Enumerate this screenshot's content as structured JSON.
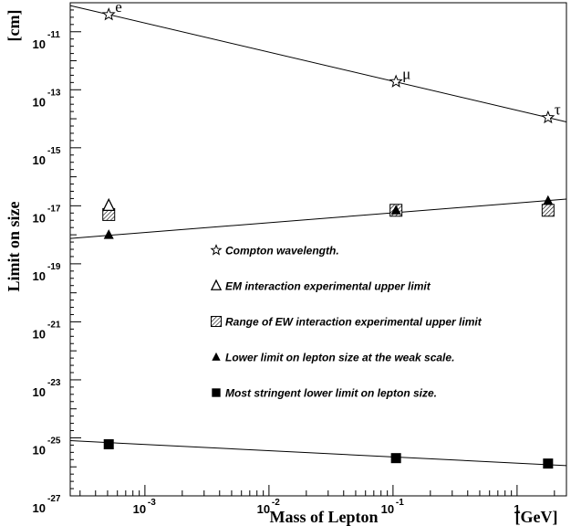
{
  "chart_data": {
    "type": "scatter",
    "xlabel": "Mass of Lepton",
    "xunit": "[GeV]",
    "ylabel": "Limit on size",
    "yunit": "[cm]",
    "xscale": "log",
    "yscale": "log",
    "xlim": [
      0.00025,
      2.5
    ],
    "ylim": [
      1e-27,
      1e-10
    ],
    "x_ticks": [
      {
        "value": 0.001,
        "base": "10",
        "exp": "-3"
      },
      {
        "value": 0.01,
        "base": "10",
        "exp": "-2"
      },
      {
        "value": 0.1,
        "base": "10",
        "exp": "-1"
      },
      {
        "value": 1,
        "base": "1",
        "exp": ""
      }
    ],
    "y_ticks": [
      {
        "value": 1e-11,
        "base": "10",
        "exp": "-11"
      },
      {
        "value": 1e-13,
        "base": "10",
        "exp": "-13"
      },
      {
        "value": 1e-15,
        "base": "10",
        "exp": "-15"
      },
      {
        "value": 1e-17,
        "base": "10",
        "exp": "-17"
      },
      {
        "value": 1e-19,
        "base": "10",
        "exp": "-19"
      },
      {
        "value": 1e-21,
        "base": "10",
        "exp": "-21"
      },
      {
        "value": 1e-23,
        "base": "10",
        "exp": "-23"
      },
      {
        "value": 1e-25,
        "base": "10",
        "exp": "-25"
      },
      {
        "value": 1e-27,
        "base": "10",
        "exp": "-27"
      }
    ],
    "point_labels": [
      "e",
      "μ",
      "τ"
    ],
    "series": [
      {
        "name": "Compton wavelength.",
        "marker": "star",
        "x": [
          0.000511,
          0.1057,
          1.777
        ],
        "y": [
          3.9e-11,
          1.9e-13,
          1.1e-14
        ],
        "fit_line": [
          [
            0.00025,
            8e-11
          ],
          [
            2.5,
            7.8e-15
          ]
        ]
      },
      {
        "name": "EM interaction experimental upper limit",
        "marker": "triangle-open",
        "x": [
          0.000511
        ],
        "y": [
          1e-17
        ]
      },
      {
        "name": "Range of EW interaction experimental upper limit",
        "marker": "hatched-square",
        "x": [
          0.000511,
          0.1057,
          1.777
        ],
        "y": [
          5e-18,
          7e-18,
          7e-18
        ]
      },
      {
        "name": "Lower limit on lepton size at the weak scale.",
        "marker": "triangle-filled",
        "x": [
          0.000511,
          0.1057,
          1.777
        ],
        "y": [
          1e-18,
          7e-18,
          1.5e-17
        ],
        "fit_line": [
          [
            0.00025,
            7.5e-19
          ],
          [
            2.5,
            1.7e-17
          ]
        ]
      },
      {
        "name": "Most stringent lower limit on lepton size.",
        "marker": "square-filled",
        "x": [
          0.000511,
          0.1057,
          1.777
        ],
        "y": [
          6e-26,
          2e-26,
          1.3e-26
        ],
        "fit_line": [
          [
            0.00025,
            8e-26
          ],
          [
            2.5,
            1.1e-26
          ]
        ]
      }
    ]
  }
}
